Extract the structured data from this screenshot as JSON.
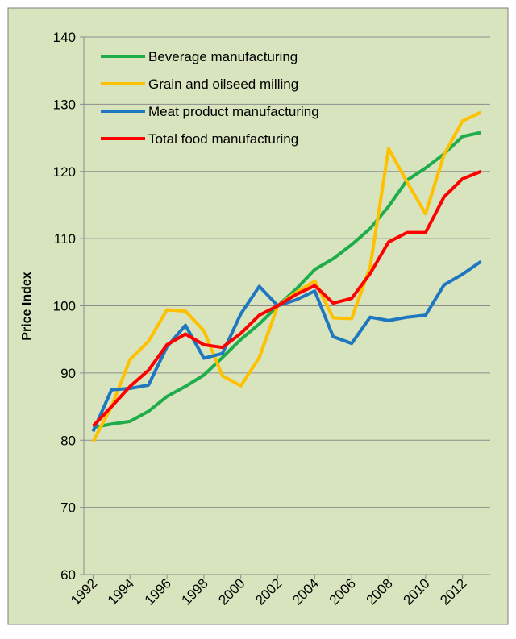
{
  "chart_data": {
    "type": "line",
    "ylabel": "Price Index",
    "x": [
      1992,
      1993,
      1994,
      1995,
      1996,
      1997,
      1998,
      1999,
      2000,
      2001,
      2002,
      2003,
      2004,
      2005,
      2006,
      2007,
      2008,
      2009,
      2010,
      2011,
      2012,
      2013
    ],
    "xlim": [
      1991.5,
      2013.5
    ],
    "xticks": [
      1992,
      1994,
      1996,
      1998,
      2000,
      2002,
      2004,
      2006,
      2008,
      2010,
      2012
    ],
    "ylim": [
      60,
      140
    ],
    "yticks": [
      60,
      70,
      80,
      90,
      100,
      110,
      120,
      130,
      140
    ],
    "grid": true,
    "legend": "upper left",
    "series": [
      {
        "name": "Beverage manufacturing",
        "color": "#1fad4b",
        "values": [
          81.9,
          82.4,
          82.8,
          84.3,
          86.5,
          88,
          89.7,
          92.3,
          95,
          97.3,
          100,
          102.5,
          105.4,
          107,
          109.1,
          111.5,
          114.8,
          118.7,
          120.5,
          122.6,
          125.2,
          125.8
        ]
      },
      {
        "name": "Grain and oilseed milling",
        "color": "#ffc000",
        "values": [
          79.8,
          85,
          92,
          94.7,
          99.4,
          99.2,
          96.3,
          89.6,
          88.1,
          92.3,
          100,
          102,
          103.7,
          98.2,
          98.1,
          105.8,
          123.4,
          118.4,
          113.7,
          122.5,
          127.5,
          128.8
        ]
      },
      {
        "name": "Meat product manufacturing",
        "color": "#1f77c0",
        "values": [
          81.3,
          87.5,
          87.7,
          88.2,
          93.9,
          97.1,
          92.2,
          92.9,
          98.8,
          102.9,
          100,
          100.9,
          102.2,
          95.4,
          94.4,
          98.3,
          97.8,
          98.3,
          98.6,
          103.1,
          104.7,
          106.6
        ]
      },
      {
        "name": "Total food manufacturing",
        "color": "#ff0000",
        "values": [
          82.1,
          85,
          88,
          90.4,
          94.2,
          95.8,
          94.2,
          93.8,
          95.9,
          98.6,
          100,
          101.7,
          103,
          100.4,
          101.1,
          104.8,
          109.5,
          110.9,
          110.9,
          116.2,
          118.9,
          120
        ]
      }
    ]
  }
}
